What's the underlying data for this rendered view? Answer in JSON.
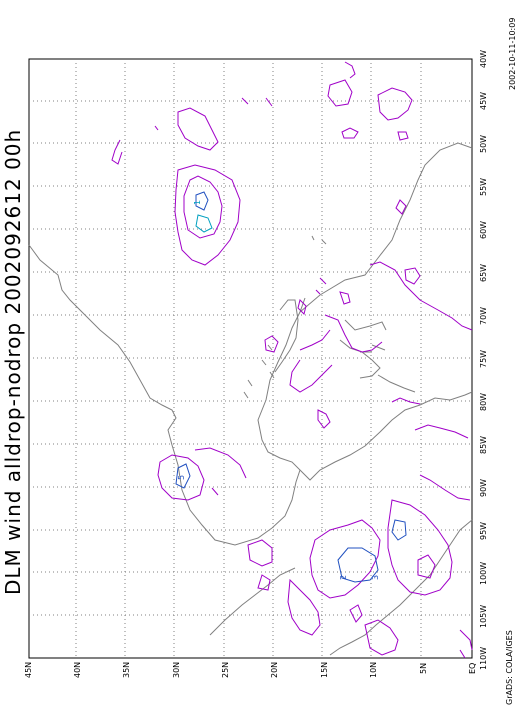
{
  "title": "DLM wind alldrop-nodrop 2002092612 00h",
  "footer_left": "GrADS: COLA/IGES",
  "footer_right": "2002-10-11-10:09",
  "lon_labels": [
    "40W",
    "45W",
    "50W",
    "55W",
    "60W",
    "65W",
    "70W",
    "75W",
    "80W",
    "85W",
    "90W",
    "95W",
    "100W",
    "105W",
    "110W"
  ],
  "lat_labels": [
    "EQ",
    "5N",
    "10N",
    "15N",
    "20N",
    "25N",
    "30N",
    "35N",
    "40N",
    "45N"
  ],
  "contour_labels": [
    "1",
    "5",
    "2",
    "3"
  ],
  "colors": {
    "coast": "#808080",
    "contour_magenta": "#a000c8",
    "contour_blue": "#2050c0",
    "contour_cyan": "#00a0c0",
    "grid": "#808080"
  }
}
